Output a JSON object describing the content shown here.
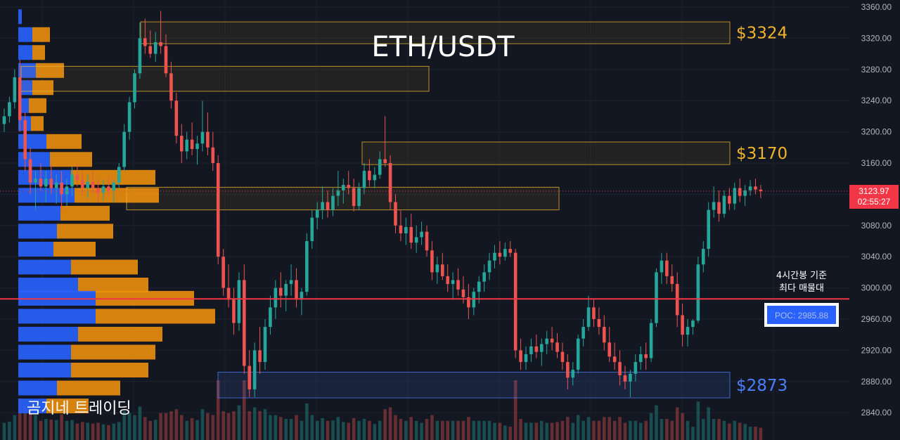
{
  "chart_data": {
    "type": "candlestick",
    "title": "ETH/USDT",
    "watermark": "곰지네 트레이딩",
    "y_axis": {
      "range": [
        2820,
        3370
      ],
      "ticks": [
        3360,
        3320,
        3280,
        3240,
        3200,
        3160,
        3120,
        3080,
        3040,
        3000,
        2960,
        2920,
        2880,
        2840
      ],
      "tick_labels": [
        "3360.00",
        "3320.00",
        "3280.00",
        "3240.00",
        "3200.00",
        "3160.00",
        "3120.00",
        "3080.00",
        "3040.00",
        "3000.00",
        "2960.00",
        "2920.00",
        "2880.00",
        "2840.00"
      ],
      "position": "right"
    },
    "last_price": {
      "value": 3123.97,
      "label": "3123.97",
      "countdown": "02:55:27",
      "color": "#f23645"
    },
    "poc": {
      "value": 2985.88,
      "label": "POC: 2985.88",
      "line_color": "#f23645"
    },
    "poc_annotation": [
      "4시간봉 기준",
      "최다 매물대"
    ],
    "zones": [
      {
        "label": "$3324",
        "low": 3313,
        "high": 3341,
        "color": "#f0b429",
        "labeled": true
      },
      {
        "label": "",
        "low": 3252,
        "high": 3284,
        "color": "#f0b429",
        "labeled": false
      },
      {
        "label": "$3170",
        "low": 3158,
        "high": 3187,
        "color": "#f0b429",
        "labeled": true
      },
      {
        "label": "",
        "low": 3100,
        "high": 3129,
        "color": "#f0b429",
        "labeled": false
      },
      {
        "label": "$2873",
        "low": 2859,
        "high": 2892,
        "color": "#4a7fff",
        "labeled": true
      }
    ],
    "volume_profile": {
      "colors": {
        "primary": "#2962ff",
        "secondary": "#f0920c"
      },
      "rows": [
        {
          "price": 3347,
          "a": 5,
          "b": 0
        },
        {
          "price": 3324,
          "a": 20,
          "b": 25
        },
        {
          "price": 3301,
          "a": 20,
          "b": 18
        },
        {
          "price": 3278,
          "a": 25,
          "b": 40
        },
        {
          "price": 3256,
          "a": 20,
          "b": 30
        },
        {
          "price": 3233,
          "a": 15,
          "b": 25
        },
        {
          "price": 3210,
          "a": 18,
          "b": 18
        },
        {
          "price": 3187,
          "a": 40,
          "b": 50
        },
        {
          "price": 3164,
          "a": 45,
          "b": 60
        },
        {
          "price": 3141,
          "a": 75,
          "b": 120
        },
        {
          "price": 3118,
          "a": 80,
          "b": 120
        },
        {
          "price": 3095,
          "a": 60,
          "b": 70
        },
        {
          "price": 3072,
          "a": 55,
          "b": 80
        },
        {
          "price": 3049,
          "a": 50,
          "b": 60
        },
        {
          "price": 3026,
          "a": 75,
          "b": 95
        },
        {
          "price": 3003,
          "a": 85,
          "b": 100
        },
        {
          "price": 2986,
          "a": 110,
          "b": 140
        },
        {
          "price": 2963,
          "a": 110,
          "b": 170
        },
        {
          "price": 2940,
          "a": 85,
          "b": 120
        },
        {
          "price": 2917,
          "a": 75,
          "b": 120
        },
        {
          "price": 2894,
          "a": 75,
          "b": 110
        },
        {
          "price": 2871,
          "a": 55,
          "b": 90
        },
        {
          "price": 2848,
          "a": 40,
          "b": 60
        }
      ]
    },
    "candles": [
      [
        3210,
        3230,
        3200,
        3220
      ],
      [
        3220,
        3245,
        3212,
        3238
      ],
      [
        3238,
        3280,
        3230,
        3270
      ],
      [
        3270,
        3292,
        3200,
        3215
      ],
      [
        3215,
        3225,
        3150,
        3165
      ],
      [
        3165,
        3180,
        3120,
        3135
      ],
      [
        3135,
        3150,
        3100,
        3140
      ],
      [
        3140,
        3160,
        3125,
        3130
      ],
      [
        3130,
        3150,
        3110,
        3140
      ],
      [
        3140,
        3158,
        3120,
        3128
      ],
      [
        3128,
        3145,
        3108,
        3135
      ],
      [
        3135,
        3150,
        3098,
        3120
      ],
      [
        3120,
        3140,
        3105,
        3130
      ],
      [
        3130,
        3155,
        3118,
        3145
      ],
      [
        3145,
        3158,
        3130,
        3138
      ],
      [
        3138,
        3150,
        3118,
        3128
      ],
      [
        3128,
        3145,
        3115,
        3136
      ],
      [
        3136,
        3150,
        3122,
        3128
      ],
      [
        3128,
        3140,
        3110,
        3122
      ],
      [
        3122,
        3138,
        3112,
        3130
      ],
      [
        3130,
        3142,
        3118,
        3125
      ],
      [
        3125,
        3138,
        3110,
        3135
      ],
      [
        3135,
        3160,
        3128,
        3155
      ],
      [
        3155,
        3210,
        3150,
        3200
      ],
      [
        3200,
        3245,
        3190,
        3238
      ],
      [
        3238,
        3280,
        3230,
        3275
      ],
      [
        3275,
        3340,
        3268,
        3320
      ],
      [
        3320,
        3345,
        3300,
        3310
      ],
      [
        3310,
        3330,
        3295,
        3300
      ],
      [
        3300,
        3328,
        3290,
        3315
      ],
      [
        3315,
        3355,
        3300,
        3310
      ],
      [
        3310,
        3325,
        3270,
        3275
      ],
      [
        3275,
        3290,
        3230,
        3240
      ],
      [
        3240,
        3250,
        3185,
        3195
      ],
      [
        3195,
        3210,
        3160,
        3175
      ],
      [
        3175,
        3200,
        3165,
        3190
      ],
      [
        3190,
        3212,
        3170,
        3178
      ],
      [
        3178,
        3195,
        3158,
        3185
      ],
      [
        3185,
        3240,
        3175,
        3200
      ],
      [
        3200,
        3225,
        3170,
        3180
      ],
      [
        3180,
        3200,
        3150,
        3160
      ],
      [
        3160,
        3170,
        3030,
        3040
      ],
      [
        3040,
        3050,
        2990,
        3000
      ],
      [
        3000,
        3030,
        2975,
        2985
      ],
      [
        2985,
        3000,
        2940,
        2955
      ],
      [
        2955,
        3020,
        2945,
        3010
      ],
      [
        3010,
        3030,
        2890,
        2900
      ],
      [
        2900,
        2920,
        2860,
        2870
      ],
      [
        2870,
        2930,
        2860,
        2920
      ],
      [
        2920,
        2950,
        2890,
        2905
      ],
      [
        2905,
        2960,
        2895,
        2950
      ],
      [
        2950,
        2990,
        2940,
        2975
      ],
      [
        2975,
        3010,
        2960,
        3000
      ],
      [
        3000,
        3020,
        2975,
        2990
      ],
      [
        2990,
        3010,
        2970,
        3005
      ],
      [
        3005,
        3030,
        2990,
        3010
      ],
      [
        3010,
        3025,
        2975,
        2985
      ],
      [
        2985,
        3000,
        2965,
        2995
      ],
      [
        2995,
        3070,
        2990,
        3060
      ],
      [
        3060,
        3100,
        3050,
        3090
      ],
      [
        3090,
        3110,
        3075,
        3100
      ],
      [
        3100,
        3130,
        3088,
        3110
      ],
      [
        3110,
        3125,
        3090,
        3100
      ],
      [
        3100,
        3128,
        3092,
        3118
      ],
      [
        3118,
        3150,
        3105,
        3125
      ],
      [
        3125,
        3140,
        3108,
        3132
      ],
      [
        3132,
        3150,
        3120,
        3128
      ],
      [
        3128,
        3140,
        3098,
        3105
      ],
      [
        3105,
        3135,
        3100,
        3128
      ],
      [
        3128,
        3160,
        3120,
        3150
      ],
      [
        3150,
        3165,
        3130,
        3138
      ],
      [
        3138,
        3155,
        3128,
        3145
      ],
      [
        3145,
        3175,
        3140,
        3165
      ],
      [
        3165,
        3220,
        3155,
        3160
      ],
      [
        3160,
        3170,
        3100,
        3110
      ],
      [
        3110,
        3120,
        3070,
        3080
      ],
      [
        3080,
        3100,
        3060,
        3070
      ],
      [
        3070,
        3090,
        3055,
        3078
      ],
      [
        3078,
        3095,
        3050,
        3058
      ],
      [
        3058,
        3080,
        3045,
        3065
      ],
      [
        3065,
        3085,
        3055,
        3072
      ],
      [
        3072,
        3080,
        3040,
        3048
      ],
      [
        3048,
        3060,
        3010,
        3020
      ],
      [
        3020,
        3040,
        3005,
        3030
      ],
      [
        3030,
        3045,
        3010,
        3015
      ],
      [
        3015,
        3030,
        2995,
        3005
      ],
      [
        3005,
        3020,
        2985,
        3010
      ],
      [
        3010,
        3025,
        2990,
        2998
      ],
      [
        2998,
        3015,
        2980,
        2988
      ],
      [
        2988,
        3005,
        2960,
        2975
      ],
      [
        2975,
        3000,
        2965,
        2995
      ],
      [
        2995,
        3015,
        2980,
        3008
      ],
      [
        3008,
        3030,
        2995,
        3020
      ],
      [
        3020,
        3045,
        3010,
        3035
      ],
      [
        3035,
        3055,
        3025,
        3045
      ],
      [
        3045,
        3060,
        3030,
        3040
      ],
      [
        3040,
        3058,
        3035,
        3050
      ],
      [
        3050,
        3060,
        3040,
        3045
      ],
      [
        3045,
        3050,
        2910,
        2920
      ],
      [
        2920,
        2935,
        2895,
        2905
      ],
      [
        2905,
        2925,
        2895,
        2915
      ],
      [
        2915,
        2935,
        2905,
        2925
      ],
      [
        2925,
        2940,
        2910,
        2918
      ],
      [
        2918,
        2935,
        2900,
        2928
      ],
      [
        2928,
        2945,
        2915,
        2935
      ],
      [
        2935,
        2950,
        2920,
        2930
      ],
      [
        2930,
        2942,
        2910,
        2918
      ],
      [
        2918,
        2930,
        2895,
        2905
      ],
      [
        2905,
        2915,
        2870,
        2885
      ],
      [
        2885,
        2905,
        2875,
        2895
      ],
      [
        2895,
        2940,
        2890,
        2935
      ],
      [
        2935,
        2960,
        2925,
        2950
      ],
      [
        2950,
        2990,
        2945,
        2975
      ],
      [
        2975,
        2985,
        2950,
        2960
      ],
      [
        2960,
        2975,
        2940,
        2950
      ],
      [
        2950,
        2965,
        2920,
        2930
      ],
      [
        2930,
        2950,
        2905,
        2912
      ],
      [
        2912,
        2930,
        2895,
        2905
      ],
      [
        2905,
        2920,
        2875,
        2888
      ],
      [
        2888,
        2900,
        2870,
        2880
      ],
      [
        2880,
        2895,
        2860,
        2890
      ],
      [
        2890,
        2915,
        2880,
        2905
      ],
      [
        2905,
        2925,
        2895,
        2915
      ],
      [
        2915,
        2930,
        2895,
        2910
      ],
      [
        2910,
        2960,
        2905,
        2955
      ],
      [
        2955,
        3025,
        2950,
        3020
      ],
      [
        3020,
        3045,
        3005,
        3035
      ],
      [
        3035,
        3045,
        3005,
        3015
      ],
      [
        3015,
        3030,
        2995,
        3005
      ],
      [
        3005,
        3020,
        2950,
        2965
      ],
      [
        2965,
        2980,
        2925,
        2940
      ],
      [
        2940,
        2960,
        2925,
        2950
      ],
      [
        2950,
        2960,
        2940,
        2958
      ],
      [
        2958,
        3040,
        2955,
        3030
      ],
      [
        3030,
        3060,
        3020,
        3050
      ],
      [
        3050,
        3110,
        3040,
        3100
      ],
      [
        3100,
        3130,
        3090,
        3110
      ],
      [
        3110,
        3125,
        3085,
        3095
      ],
      [
        3095,
        3125,
        3090,
        3118
      ],
      [
        3118,
        3128,
        3100,
        3108
      ],
      [
        3108,
        3135,
        3100,
        3128
      ],
      [
        3128,
        3140,
        3110,
        3118
      ],
      [
        3118,
        3132,
        3105,
        3125
      ],
      [
        3125,
        3138,
        3118,
        3130
      ],
      [
        3130,
        3140,
        3120,
        3126
      ],
      [
        3126,
        3132,
        3115,
        3124
      ]
    ]
  }
}
